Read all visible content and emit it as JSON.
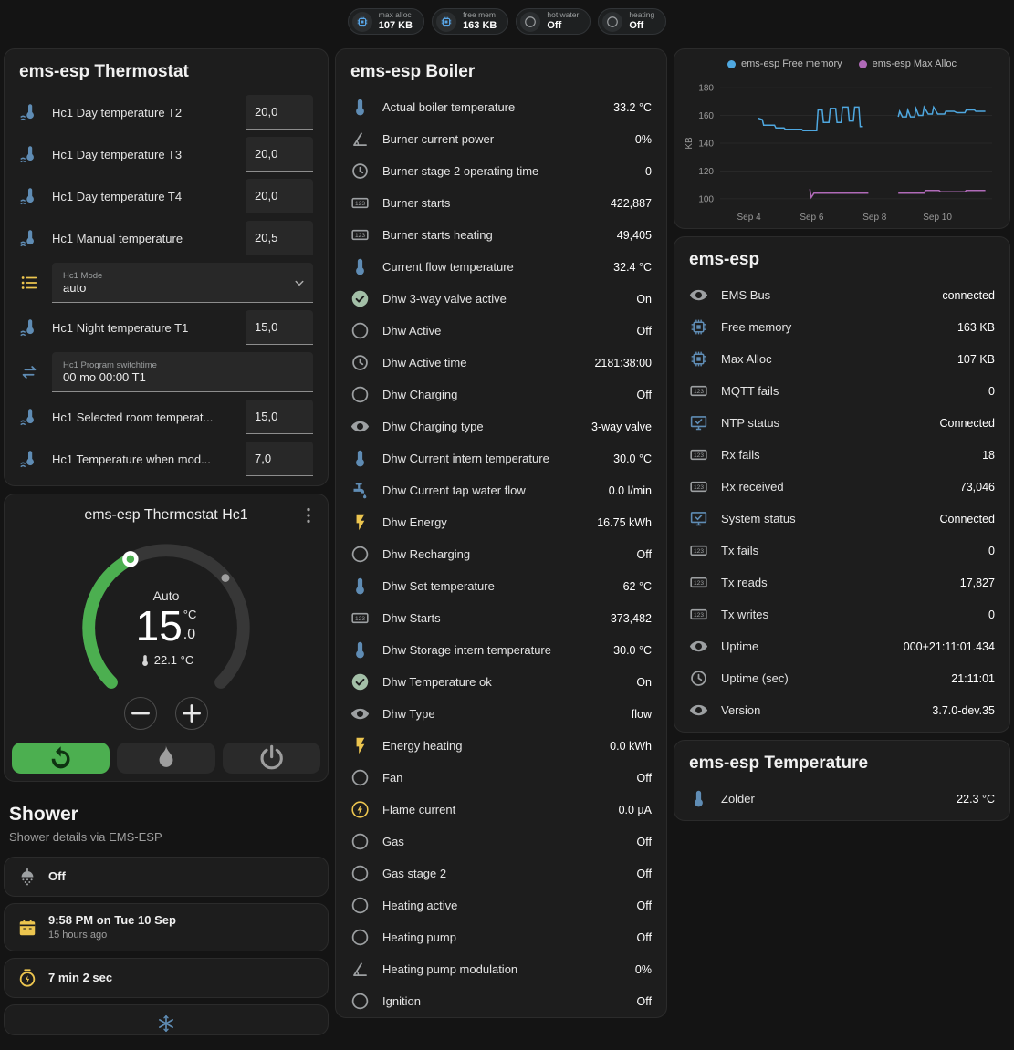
{
  "colors": {
    "accent_green": "#4caf50",
    "icon_blue": "#5f8cb4",
    "icon_amber": "#ecc54f",
    "chart_blue": "#4fa8e0",
    "chart_purple": "#b06ab8"
  },
  "badges": [
    {
      "icon": "chip",
      "icon_color": "blue",
      "label": "max alloc",
      "value": "107 KB"
    },
    {
      "icon": "chip",
      "icon_color": "blue",
      "label": "free mem",
      "value": "163 KB"
    },
    {
      "icon": "circle",
      "icon_color": "grey",
      "label": "hot water",
      "value": "Off"
    },
    {
      "icon": "circle",
      "icon_color": "grey",
      "label": "heating",
      "value": "Off"
    }
  ],
  "thermostat": {
    "title": "ems-esp Thermostat",
    "rows": [
      {
        "icon": "thermo-water",
        "color": "blue",
        "type": "number",
        "label": "Hc1 Day temperature T2",
        "value": "20,0"
      },
      {
        "icon": "thermo-water",
        "color": "blue",
        "type": "number",
        "label": "Hc1 Day temperature T3",
        "value": "20,0"
      },
      {
        "icon": "thermo-water",
        "color": "blue",
        "type": "number",
        "label": "Hc1 Day temperature T4",
        "value": "20,0"
      },
      {
        "icon": "thermo-water",
        "color": "blue",
        "type": "number",
        "label": "Hc1 Manual temperature",
        "value": "20,5"
      },
      {
        "icon": "list",
        "color": "amber",
        "type": "select",
        "label": "Hc1 Mode",
        "value": "auto"
      },
      {
        "icon": "thermo-water",
        "color": "blue",
        "type": "number",
        "label": "Hc1 Night temperature T1",
        "value": "15,0"
      },
      {
        "icon": "swap",
        "color": "blue",
        "type": "text",
        "label": "Hc1 Program switchtime",
        "value": "00 mo 00:00 T1"
      },
      {
        "icon": "thermo-water",
        "color": "blue",
        "type": "number",
        "label": "Hc1 Selected room temperat...",
        "value": "15,0"
      },
      {
        "icon": "thermo-water",
        "color": "blue",
        "type": "number",
        "label": "Hc1 Temperature when mod...",
        "value": "7,0"
      }
    ]
  },
  "hc1": {
    "title": "ems-esp Thermostat Hc1",
    "mode": "Auto",
    "temp_int": "15",
    "temp_frac": ".0",
    "temp_unit": "°C",
    "current_temp": "22.1 °C"
  },
  "shower": {
    "heading": "Shower",
    "subtitle": "Shower details via EMS-ESP",
    "rows": [
      {
        "icon": "shower",
        "color": "grey",
        "text": "Off",
        "sub": ""
      },
      {
        "icon": "calendar",
        "color": "amber",
        "text": "9:58 PM on Tue 10 Sep",
        "sub": "15 hours ago"
      },
      {
        "icon": "timer",
        "color": "amber",
        "text": "7 min 2 sec",
        "sub": ""
      }
    ],
    "partial_icon": "snowflake"
  },
  "boiler": {
    "title": "ems-esp Boiler",
    "rows": [
      {
        "icon": "thermometer",
        "color": "blue",
        "label": "Actual boiler temperature",
        "value": "33.2 °C"
      },
      {
        "icon": "angle",
        "color": "grey",
        "label": "Burner current power",
        "value": "0%"
      },
      {
        "icon": "clock",
        "color": "grey",
        "label": "Burner stage 2 operating time",
        "value": "0"
      },
      {
        "icon": "counter",
        "color": "grey",
        "label": "Burner starts",
        "value": "422,887"
      },
      {
        "icon": "counter",
        "color": "grey",
        "label": "Burner starts heating",
        "value": "49,405"
      },
      {
        "icon": "thermometer",
        "color": "blue",
        "label": "Current flow temperature",
        "value": "32.4 °C"
      },
      {
        "icon": "check",
        "color": "green",
        "label": "Dhw 3-way valve active",
        "value": "On"
      },
      {
        "icon": "circle",
        "color": "grey",
        "label": "Dhw Active",
        "value": "Off"
      },
      {
        "icon": "clock",
        "color": "grey",
        "label": "Dhw Active time",
        "value": "2181:38:00"
      },
      {
        "icon": "circle",
        "color": "grey",
        "label": "Dhw Charging",
        "value": "Off"
      },
      {
        "icon": "eye",
        "color": "grey",
        "label": "Dhw Charging type",
        "value": "3-way valve"
      },
      {
        "icon": "thermometer",
        "color": "blue",
        "label": "Dhw Current intern temperature",
        "value": "30.0 °C"
      },
      {
        "icon": "pump",
        "color": "blue",
        "label": "Dhw Current tap water flow",
        "value": "0.0 l/min"
      },
      {
        "icon": "bolt",
        "color": "amber",
        "label": "Dhw Energy",
        "value": "16.75 kWh"
      },
      {
        "icon": "circle",
        "color": "grey",
        "label": "Dhw Recharging",
        "value": "Off"
      },
      {
        "icon": "thermometer",
        "color": "blue",
        "label": "Dhw Set temperature",
        "value": "62 °C"
      },
      {
        "icon": "counter",
        "color": "grey",
        "label": "Dhw Starts",
        "value": "373,482"
      },
      {
        "icon": "thermometer",
        "color": "blue",
        "label": "Dhw Storage intern temperature",
        "value": "30.0 °C"
      },
      {
        "icon": "check",
        "color": "green",
        "label": "Dhw Temperature ok",
        "value": "On"
      },
      {
        "icon": "eye",
        "color": "grey",
        "label": "Dhw Type",
        "value": "flow"
      },
      {
        "icon": "bolt",
        "color": "amber",
        "label": "Energy heating",
        "value": "0.0 kWh"
      },
      {
        "icon": "circle",
        "color": "grey",
        "label": "Fan",
        "value": "Off"
      },
      {
        "icon": "bolt-circle",
        "color": "amber",
        "label": "Flame current",
        "value": "0.0 µA"
      },
      {
        "icon": "circle",
        "color": "grey",
        "label": "Gas",
        "value": "Off"
      },
      {
        "icon": "circle",
        "color": "grey",
        "label": "Gas stage 2",
        "value": "Off"
      },
      {
        "icon": "circle",
        "color": "grey",
        "label": "Heating active",
        "value": "Off"
      },
      {
        "icon": "circle",
        "color": "grey",
        "label": "Heating pump",
        "value": "Off"
      },
      {
        "icon": "angle",
        "color": "grey",
        "label": "Heating pump modulation",
        "value": "0%"
      },
      {
        "icon": "circle",
        "color": "grey",
        "label": "Ignition",
        "value": "Off"
      }
    ]
  },
  "emsesp": {
    "title": "ems-esp",
    "rows": [
      {
        "icon": "eye",
        "color": "grey",
        "label": "EMS Bus",
        "value": "connected"
      },
      {
        "icon": "chip",
        "color": "blue",
        "label": "Free memory",
        "value": "163 KB"
      },
      {
        "icon": "chip",
        "color": "blue",
        "label": "Max Alloc",
        "value": "107 KB"
      },
      {
        "icon": "counter",
        "color": "grey",
        "label": "MQTT fails",
        "value": "0"
      },
      {
        "icon": "monitor",
        "color": "blue",
        "label": "NTP status",
        "value": "Connected"
      },
      {
        "icon": "counter",
        "color": "grey",
        "label": "Rx fails",
        "value": "18"
      },
      {
        "icon": "counter",
        "color": "grey",
        "label": "Rx received",
        "value": "73,046"
      },
      {
        "icon": "monitor",
        "color": "blue",
        "label": "System status",
        "value": "Connected"
      },
      {
        "icon": "counter",
        "color": "grey",
        "label": "Tx fails",
        "value": "0"
      },
      {
        "icon": "counter",
        "color": "grey",
        "label": "Tx reads",
        "value": "17,827"
      },
      {
        "icon": "counter",
        "color": "grey",
        "label": "Tx writes",
        "value": "0"
      },
      {
        "icon": "eye",
        "color": "grey",
        "label": "Uptime",
        "value": "000+21:11:01.434"
      },
      {
        "icon": "clock",
        "color": "grey",
        "label": "Uptime (sec)",
        "value": "21:11:01"
      },
      {
        "icon": "eye",
        "color": "grey",
        "label": "Version",
        "value": "3.7.0-dev.35"
      }
    ]
  },
  "temperature": {
    "title": "ems-esp Temperature",
    "rows": [
      {
        "icon": "thermometer",
        "color": "blue",
        "label": "Zolder",
        "value": "22.3 °C"
      }
    ]
  },
  "chart_data": {
    "type": "line",
    "ylabel": "KB",
    "ylim": [
      100,
      180
    ],
    "yticks": [
      180,
      160,
      140,
      120,
      100
    ],
    "xticks": [
      {
        "label": "Sep 4",
        "t": 0.106
      },
      {
        "label": "Sep 6",
        "t": 0.337
      },
      {
        "label": "Sep 8",
        "t": 0.568
      },
      {
        "label": "Sep 10",
        "t": 0.799
      }
    ],
    "series": [
      {
        "name": "ems-esp Free memory",
        "color": "#4fa8e0",
        "unit": "KB",
        "segments": [
          [
            [
              0.14,
              158
            ],
            [
              0.155,
              157
            ],
            [
              0.16,
              153
            ],
            [
              0.2,
              153
            ],
            [
              0.205,
              151
            ],
            [
              0.235,
              151
            ],
            [
              0.24,
              150
            ],
            [
              0.3,
              150
            ],
            [
              0.305,
              149
            ],
            [
              0.355,
              149
            ],
            [
              0.36,
              164
            ],
            [
              0.375,
              164
            ],
            [
              0.38,
              155
            ],
            [
              0.4,
              155
            ],
            [
              0.405,
              165
            ],
            [
              0.425,
              165
            ],
            [
              0.43,
              155
            ],
            [
              0.445,
              155
            ],
            [
              0.45,
              166
            ],
            [
              0.47,
              166
            ],
            [
              0.475,
              156
            ],
            [
              0.49,
              156
            ],
            [
              0.495,
              166
            ],
            [
              0.51,
              166
            ],
            [
              0.515,
              152
            ],
            [
              0.525,
              152
            ]
          ],
          [
            [
              0.655,
              159
            ],
            [
              0.66,
              163
            ],
            [
              0.67,
              159
            ],
            [
              0.685,
              159
            ],
            [
              0.69,
              164
            ],
            [
              0.7,
              159
            ],
            [
              0.715,
              159
            ],
            [
              0.72,
              165
            ],
            [
              0.73,
              160
            ],
            [
              0.745,
              160
            ],
            [
              0.75,
              166
            ],
            [
              0.765,
              161
            ],
            [
              0.78,
              161
            ],
            [
              0.785,
              166
            ],
            [
              0.8,
              161
            ],
            [
              0.825,
              161
            ],
            [
              0.83,
              163
            ],
            [
              0.86,
              163
            ],
            [
              0.87,
              162
            ],
            [
              0.9,
              162
            ],
            [
              0.905,
              164
            ],
            [
              0.935,
              164
            ],
            [
              0.94,
              163
            ],
            [
              0.975,
              163
            ]
          ]
        ]
      },
      {
        "name": "ems-esp Max Alloc",
        "color": "#b06ab8",
        "unit": "KB",
        "segments": [
          [
            [
              0.33,
              107
            ],
            [
              0.335,
              101
            ],
            [
              0.345,
              104
            ],
            [
              0.545,
              104
            ]
          ],
          [
            [
              0.655,
              104
            ],
            [
              0.75,
              104
            ],
            [
              0.755,
              106
            ],
            [
              0.805,
              106
            ],
            [
              0.81,
              105
            ],
            [
              0.9,
              105
            ],
            [
              0.905,
              106
            ],
            [
              0.975,
              106
            ]
          ]
        ]
      }
    ]
  }
}
